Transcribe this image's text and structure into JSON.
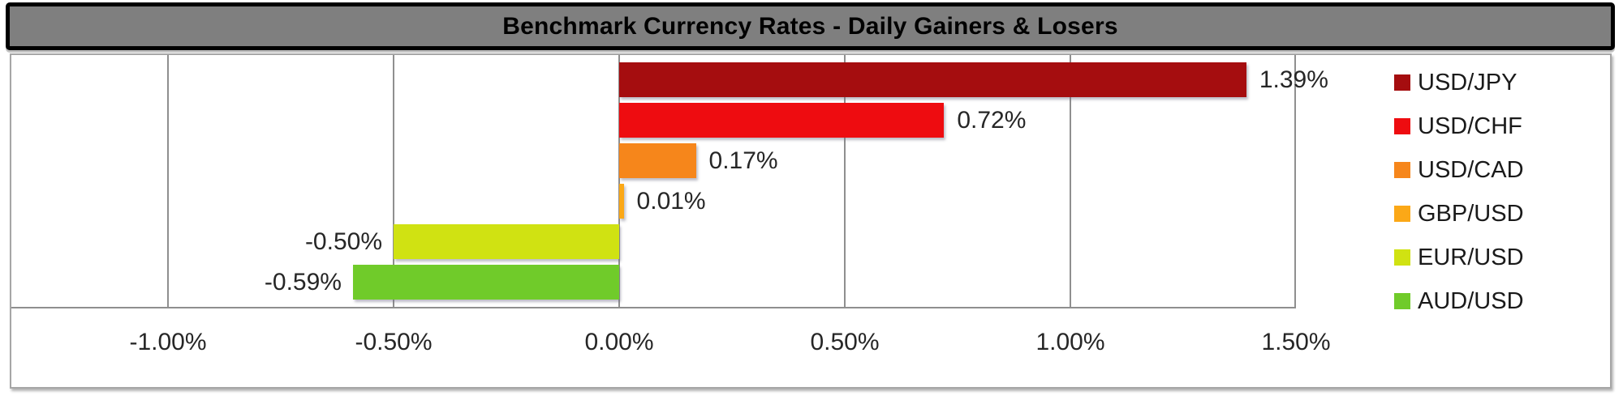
{
  "chart_data": {
    "type": "bar",
    "orientation": "horizontal",
    "title": "Benchmark Currency Rates - Daily Gainers & Losers",
    "categories": [
      "USD/JPY",
      "USD/CHF",
      "USD/CAD",
      "GBP/USD",
      "EUR/USD",
      "AUD/USD"
    ],
    "values": [
      1.39,
      0.72,
      0.17,
      0.01,
      -0.5,
      -0.59
    ],
    "data_labels": [
      "1.39%",
      "0.72%",
      "0.17%",
      "0.01%",
      "-0.50%",
      "-0.59%"
    ],
    "bar_colors": [
      "#a50d0f",
      "#ee0c10",
      "#f6861b",
      "#fba817",
      "#d0e212",
      "#70cb2a"
    ],
    "x_tick_labels": [
      "-1.00%",
      "-0.50%",
      "0.00%",
      "0.50%",
      "1.00%",
      "1.50%"
    ],
    "x_tick_values": [
      -1.0,
      -0.5,
      0.0,
      0.5,
      1.0,
      1.5
    ],
    "xlim": [
      -1.35,
      1.5
    ],
    "unit": "%",
    "grid": "vertical-major",
    "legend_position": "right",
    "legend_entries": [
      "USD/JPY",
      "USD/CHF",
      "USD/CAD",
      "GBP/USD",
      "EUR/USD",
      "AUD/USD"
    ]
  },
  "styles": {
    "title_bg": "#7f7f7f",
    "title_border": "#000000",
    "title_text": "#000000",
    "frame_border": "#a6a6a6",
    "gridline": "#8f8f8f",
    "label_text": "#262626"
  }
}
